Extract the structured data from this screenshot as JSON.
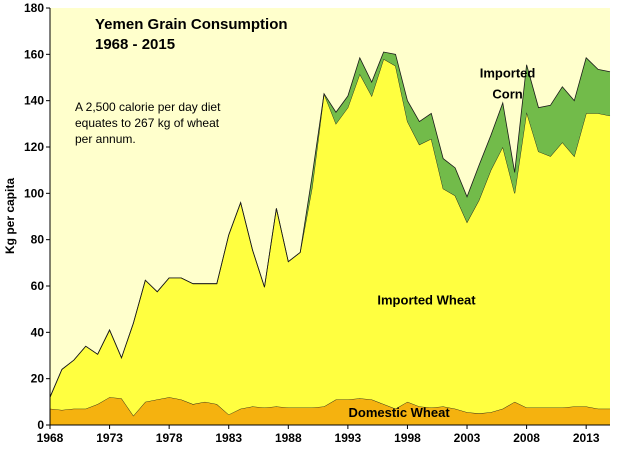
{
  "chart_data": {
    "type": "area",
    "stacked": true,
    "title": "Yemen Grain Consumption",
    "subtitle": "1968 - 2015",
    "ylabel": "Kg per capita",
    "xlabel": "",
    "ylim": [
      0,
      180
    ],
    "xlim": [
      1968,
      2015
    ],
    "y_ticks": [
      0,
      20,
      40,
      60,
      80,
      100,
      120,
      140,
      160,
      180
    ],
    "x_ticks": [
      1968,
      1973,
      1978,
      1983,
      1988,
      1993,
      1998,
      2003,
      2008,
      2013
    ],
    "grid": false,
    "annotation": [
      "A 2,500 calorie per day diet",
      "equates to 267 kg of wheat",
      "per annum."
    ],
    "years": [
      1968,
      1969,
      1970,
      1971,
      1972,
      1973,
      1974,
      1975,
      1976,
      1977,
      1978,
      1979,
      1980,
      1981,
      1982,
      1983,
      1984,
      1985,
      1986,
      1987,
      1988,
      1989,
      1990,
      1991,
      1992,
      1993,
      1994,
      1995,
      1996,
      1997,
      1998,
      1999,
      2000,
      2001,
      2002,
      2003,
      2004,
      2005,
      2006,
      2007,
      2008,
      2009,
      2010,
      2011,
      2012,
      2013,
      2014,
      2015
    ],
    "series": [
      {
        "name": "Domestic Wheat",
        "color": "#f5b20f",
        "values": [
          7,
          6.5,
          7,
          7,
          9,
          12,
          11.5,
          4,
          10,
          11,
          12,
          11,
          9,
          10,
          9,
          4.5,
          7,
          8,
          7.5,
          8,
          7.5,
          7.5,
          7.5,
          8,
          11,
          11,
          11.5,
          11,
          9,
          7,
          10,
          8,
          7.5,
          8,
          7,
          5.5,
          5,
          5.5,
          7,
          10,
          7.5,
          7.5,
          7.5,
          7.5,
          8,
          8,
          7,
          7
        ]
      },
      {
        "name": "Imported Wheat",
        "color": "#ffff40",
        "values": [
          5,
          17.5,
          21,
          27,
          21.5,
          29,
          17.5,
          40,
          52.5,
          46.5,
          51.5,
          52.5,
          52,
          51,
          52,
          77.5,
          89,
          67.5,
          52,
          85.5,
          63,
          67,
          95,
          135,
          119,
          126,
          140,
          131,
          149,
          148,
          121,
          113,
          116,
          94,
          92,
          82,
          92,
          104.5,
          113,
          90,
          127.5,
          110.5,
          108.5,
          114.5,
          108,
          126.5,
          127.5,
          126.5
        ]
      },
      {
        "name": "Imported Corn",
        "color": "#72bb4a",
        "values": [
          0,
          0,
          0,
          0,
          0,
          0,
          0,
          0,
          0,
          0,
          0,
          0,
          0,
          0,
          0,
          0,
          0,
          0,
          0,
          0,
          0,
          0,
          5,
          0,
          5,
          5,
          7,
          6,
          3,
          5,
          9,
          10,
          11,
          13,
          12,
          11,
          15,
          15,
          19,
          9,
          20.5,
          19,
          22,
          24,
          24,
          24,
          19,
          19
        ]
      }
    ]
  }
}
